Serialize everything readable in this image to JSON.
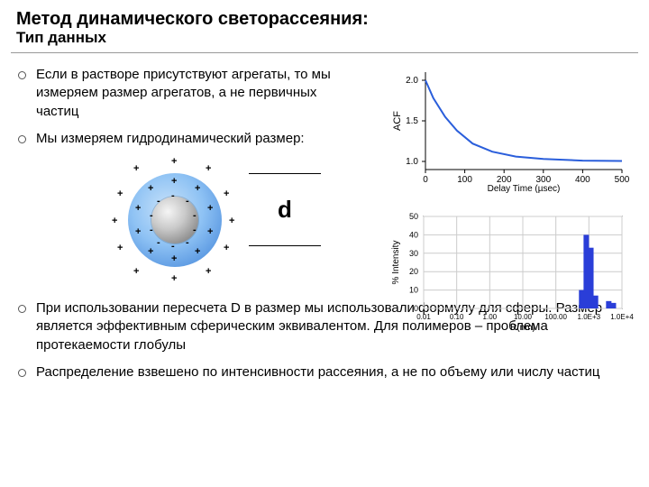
{
  "title": "Метод динамического светорассеяния:",
  "subtitle": "Тип данных",
  "bullets_top": [
    "Если в растворе присутствуют агрегаты, то мы измеряем размер агрегатов, а не первичных частиц",
    "Мы измеряем гидродинамический размер:"
  ],
  "bullets_bottom": [
    "При использовании пересчета D в размер мы использовали формулу для сферы. Размер является эффективным сферическим эквивалентом. Для полимеров – проблема протекаемости глобулы",
    "Распределение взвешено по интенсивности рассеяния, а не по объему или числу частиц"
  ],
  "dim_label": "d",
  "acf": {
    "ylabel": "ACF",
    "xlabel": "Delay Time (µsec)",
    "xticks": [
      "0",
      "100",
      "200",
      "300",
      "400",
      "500"
    ],
    "yticks": [
      "1.0",
      "1.5",
      "2.0"
    ],
    "xlim": [
      0,
      500
    ],
    "ylim": [
      0.9,
      2.1
    ],
    "line_color": "#2a5edb",
    "curve": [
      [
        0,
        2.0
      ],
      [
        20,
        1.78
      ],
      [
        50,
        1.55
      ],
      [
        80,
        1.38
      ],
      [
        120,
        1.22
      ],
      [
        170,
        1.12
      ],
      [
        230,
        1.06
      ],
      [
        300,
        1.03
      ],
      [
        400,
        1.01
      ],
      [
        500,
        1.005
      ]
    ]
  },
  "hist": {
    "ylabel": "% Intensity",
    "xlabel": "R(nm)",
    "xticks": [
      "0.01",
      "0.10",
      "1.00",
      "10.00",
      "100.00",
      "1.0E+3",
      "1.0E+4"
    ],
    "yticks": [
      "0",
      "10",
      "20",
      "30",
      "40",
      "50"
    ],
    "bar_color": "#2a3ed8",
    "bars": [
      {
        "x": 2.78,
        "h": 10
      },
      {
        "x": 2.92,
        "h": 40
      },
      {
        "x": 3.06,
        "h": 33
      },
      {
        "x": 3.2,
        "h": 7
      },
      {
        "x": 3.6,
        "h": 4
      },
      {
        "x": 3.74,
        "h": 3
      }
    ],
    "xlog_range": [
      0.01,
      10000
    ]
  },
  "colors": {
    "background": "#ffffff",
    "text": "#000000",
    "particle_outer": [
      "#c8e2fa",
      "#3a7ed6"
    ],
    "particle_core": [
      "#f5f5f5",
      "#555555"
    ]
  }
}
